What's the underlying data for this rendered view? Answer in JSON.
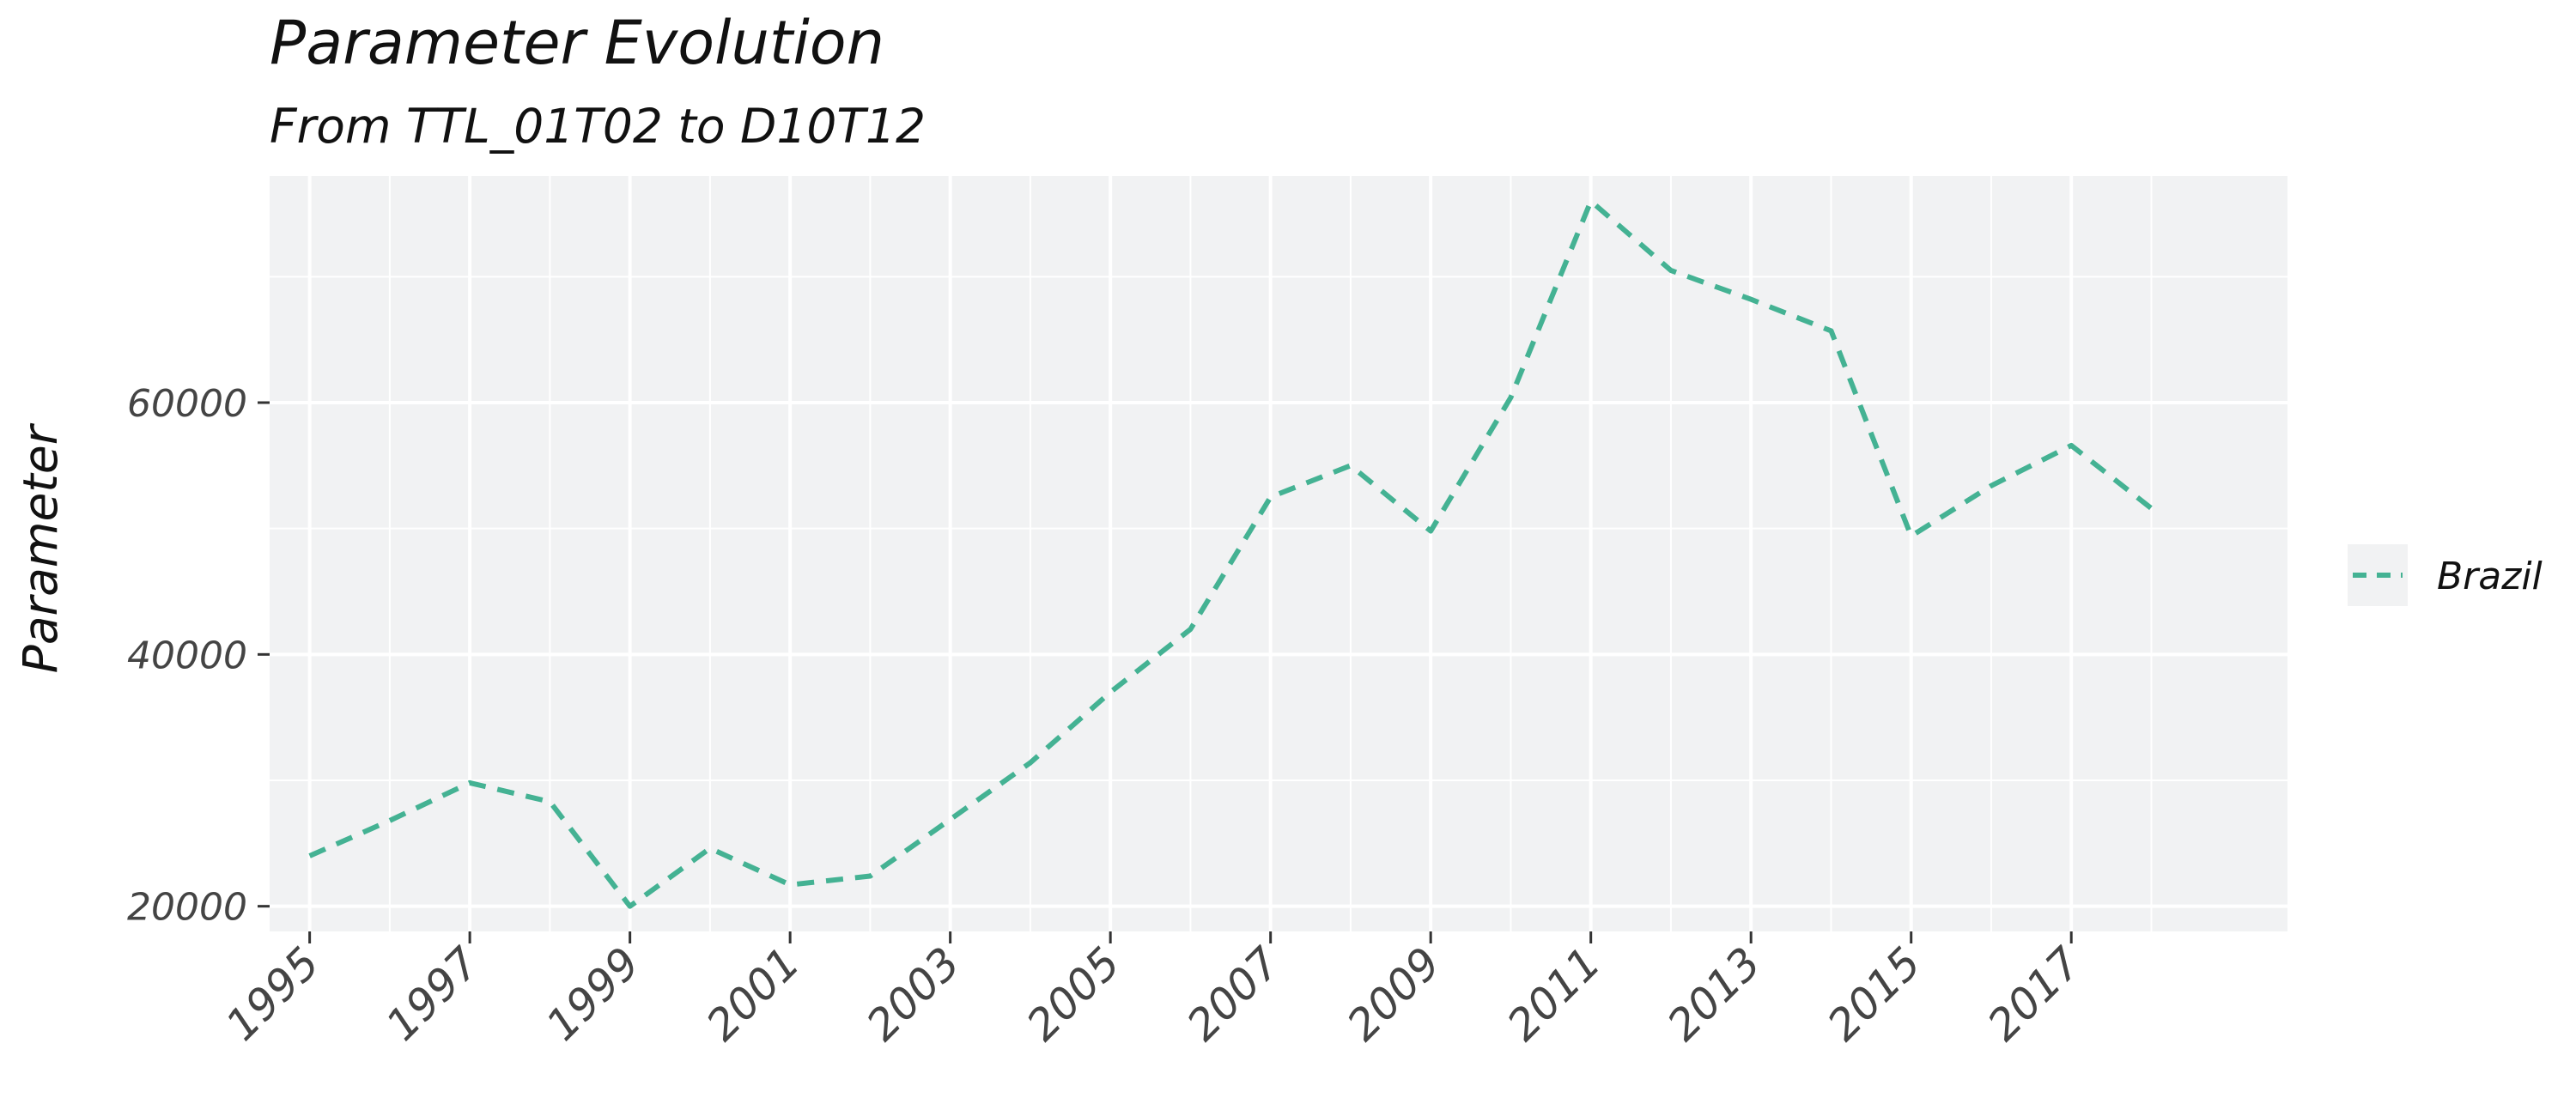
{
  "chart_data": {
    "type": "line",
    "title": "Parameter Evolution",
    "subtitle": "From TTL_01T02 to D10T12",
    "xlabel": "",
    "ylabel": "Parameter",
    "x": [
      1995,
      1996,
      1997,
      1998,
      1999,
      2000,
      2001,
      2002,
      2003,
      2004,
      2005,
      2006,
      2007,
      2008,
      2009,
      2010,
      2011,
      2012,
      2013,
      2014,
      2015,
      2016,
      2017,
      2018
    ],
    "x_tick_labels": [
      "1995",
      "1997",
      "1999",
      "2001",
      "2003",
      "2005",
      "2007",
      "2009",
      "2011",
      "2013",
      "2015",
      "2017"
    ],
    "y_tick_values": [
      20000,
      40000,
      60000
    ],
    "y_tick_labels": [
      "20000",
      "40000",
      "60000"
    ],
    "xlim": [
      1994.5,
      2019.7
    ],
    "ylim": [
      18000,
      78000
    ],
    "series": [
      {
        "name": "Brazil",
        "values": [
          24000,
          26800,
          29800,
          28300,
          20000,
          24600,
          21700,
          22400,
          26900,
          31400,
          37000,
          42000,
          52500,
          55000,
          49800,
          60400,
          76000,
          70500,
          68200,
          65700,
          49400,
          53400,
          56600,
          51600
        ]
      }
    ],
    "colors": {
      "series": "#44b293",
      "panel": "#f1f2f3",
      "grid": "#ffffff"
    },
    "grid": true,
    "line_style": "dashed",
    "legend_position": "right"
  }
}
